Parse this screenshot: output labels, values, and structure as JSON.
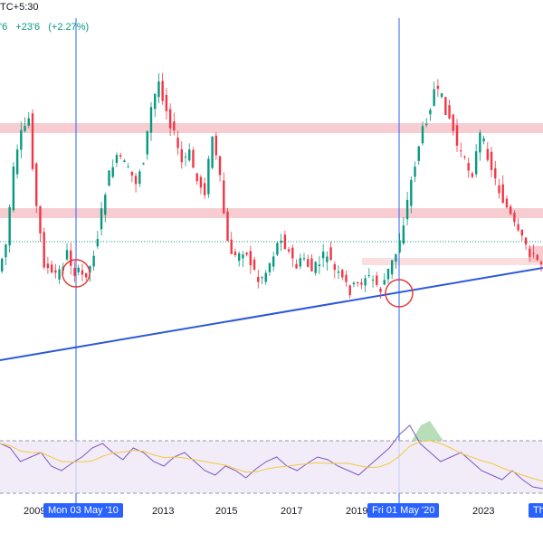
{
  "header": {
    "timezone_fragment": "TC+5:30",
    "price_fragment": "'6",
    "change": "+23'6",
    "change_pct": "(+2.27%)"
  },
  "time_axis": {
    "labels": [
      "2009",
      "2013",
      "2015",
      "2017",
      "2019",
      "2023"
    ],
    "badges": [
      "Mon 03 May '10",
      "Fri 01 May '20",
      "Th"
    ]
  },
  "colors": {
    "up": "#089981",
    "down": "#f23645",
    "zone": "#f7b8bf",
    "trendline": "#2b59d8",
    "marker": "#2962ff",
    "rsi_line": "#7e57c2",
    "rsi_ma": "#f5c842",
    "rsi_band": "#ede7f6"
  },
  "chart_data": {
    "type": "candlestick-with-rsi",
    "price_zones": [
      "upper-resistance",
      "middle-resistance",
      "support"
    ],
    "trendline": "rising",
    "marked_dates": [
      "Mon 03 May '10",
      "Fri 01 May '20"
    ],
    "circled_points": [
      "Mon 03 May '10",
      "Fri 01 May '20"
    ],
    "price_path": [
      300,
      270,
      190,
      150,
      130,
      230,
      290,
      305,
      300,
      280,
      300,
      305,
      295,
      260,
      210,
      180,
      175,
      190,
      200,
      175,
      120,
      90,
      120,
      150,
      180,
      170,
      200,
      210,
      150,
      200,
      270,
      285,
      275,
      290,
      310,
      300,
      280,
      260,
      280,
      295,
      285,
      300,
      290,
      280,
      300,
      310,
      320,
      315,
      305,
      310,
      320,
      300,
      280,
      245,
      200,
      160,
      130,
      100,
      110,
      130,
      160,
      180,
      190,
      150,
      170,
      200,
      220,
      240,
      260,
      270,
      285,
      290
    ],
    "rsi_path": [
      490,
      495,
      510,
      505,
      500,
      515,
      520,
      512,
      505,
      495,
      490,
      500,
      508,
      495,
      500,
      510,
      515,
      505,
      500,
      510,
      520,
      525,
      515,
      520,
      528,
      518,
      510,
      505,
      515,
      520,
      512,
      505,
      508,
      515,
      520,
      525,
      515,
      505,
      495,
      480,
      470,
      490,
      500,
      510,
      505,
      500,
      510,
      520,
      525,
      530,
      520,
      530,
      538,
      540
    ]
  }
}
